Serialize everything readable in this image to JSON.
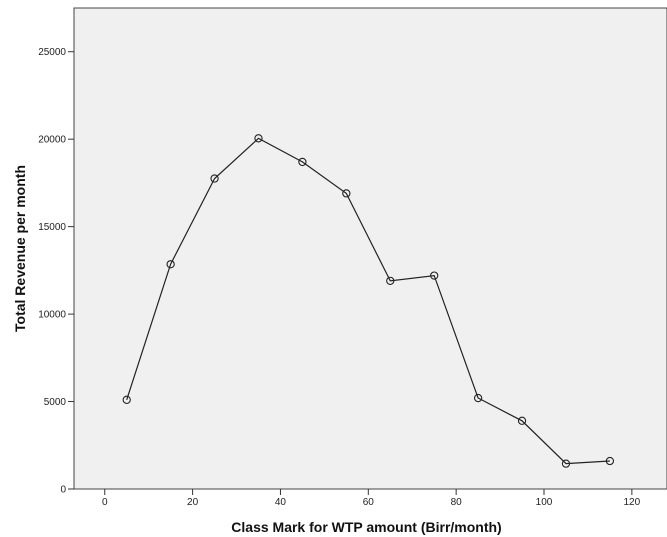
{
  "chart_data": {
    "type": "line",
    "title": "",
    "xlabel": "Class Mark for WTP amount (Birr/month)",
    "ylabel": "Total Revenue per month",
    "xlim": [
      -7,
      128
    ],
    "ylim": [
      0,
      27500
    ],
    "x_ticks": [
      0,
      20,
      40,
      60,
      80,
      100,
      120
    ],
    "y_ticks": [
      0,
      5000,
      10000,
      15000,
      20000,
      25000
    ],
    "grid": false,
    "legend": "none",
    "colors": {
      "plot_background": "#f0f0f0",
      "line": "#222222",
      "marker": "#222222"
    },
    "series": [
      {
        "x": [
          5,
          15,
          25,
          35,
          45,
          55,
          65,
          75,
          85,
          95,
          105,
          115
        ],
        "values": [
          5100,
          12850,
          17750,
          20050,
          18700,
          16900,
          11900,
          12200,
          5200,
          3900,
          1450,
          1600
        ]
      }
    ]
  }
}
